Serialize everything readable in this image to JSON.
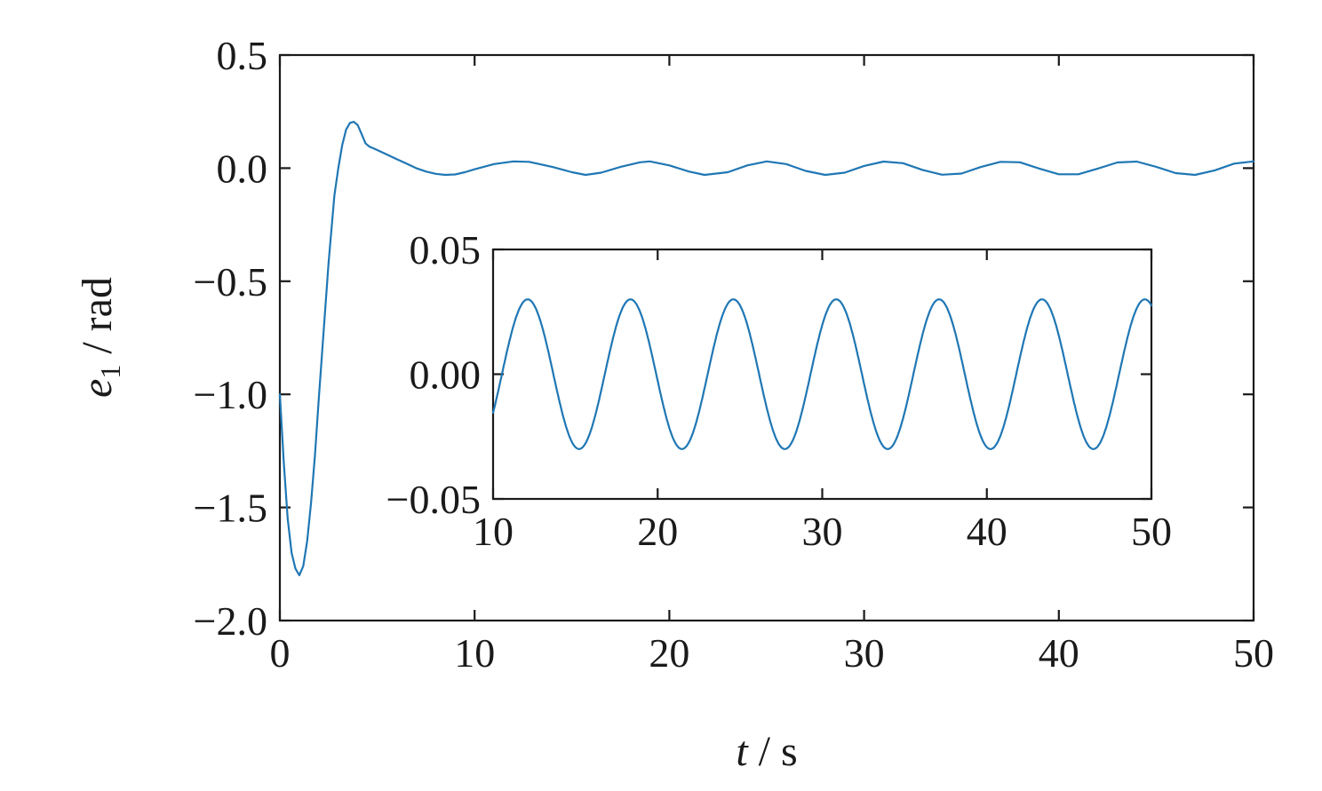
{
  "chart_data": [
    {
      "type": "line",
      "xlabel": {
        "var": "t",
        "sep": " / ",
        "unit": "s"
      },
      "ylabel": {
        "var": "e",
        "sub": "1",
        "sep": " / ",
        "unit": "rad"
      },
      "xlim": [
        0,
        50
      ],
      "ylim": [
        -2.0,
        0.5
      ],
      "xticks": [
        0,
        10,
        20,
        30,
        40,
        50
      ],
      "xtick_labels": [
        "0",
        "10",
        "20",
        "30",
        "40",
        "50"
      ],
      "yticks": [
        0.5,
        0.0,
        -0.5,
        -1.0,
        -1.5,
        -2.0
      ],
      "ytick_labels": [
        "0.5",
        "0.0",
        "−0.5",
        "−1.0",
        "−1.5",
        "−2.0"
      ],
      "grid": false,
      "color": "#1f77b4",
      "series": [
        {
          "x": [
            0,
            0.2,
            0.4,
            0.6,
            0.8,
            1.0,
            1.2,
            1.4,
            1.6,
            1.8,
            2.0,
            2.2,
            2.5,
            2.8,
            3.0,
            3.2,
            3.4,
            3.6,
            3.8,
            4.0,
            4.2,
            4.4,
            4.6,
            4.8,
            5.0,
            5.5,
            6.0,
            6.5,
            7.0,
            7.5,
            8.0,
            8.5,
            9.0,
            9.5,
            10.0,
            11.0,
            12.0,
            12.8,
            14.0,
            15.0,
            15.7,
            16.5,
            17.5,
            18.5,
            19.0,
            20.0,
            21.0,
            21.8,
            23.0,
            24.0,
            25.0,
            26.0,
            27.0,
            28.0,
            29.0,
            30.0,
            31.0,
            32.0,
            33.0,
            34.0,
            35.0,
            36.0,
            37.0,
            38.0,
            39.0,
            40.0,
            41.0,
            42.0,
            43.0,
            44.0,
            45.0,
            46.0,
            47.0,
            48.0,
            49.0,
            50.0
          ],
          "y": [
            -1.0,
            -1.3,
            -1.55,
            -1.7,
            -1.77,
            -1.8,
            -1.76,
            -1.65,
            -1.48,
            -1.27,
            -1.02,
            -0.78,
            -0.42,
            -0.12,
            0.0,
            0.1,
            0.17,
            0.2,
            0.205,
            0.19,
            0.15,
            0.11,
            0.095,
            0.088,
            0.08,
            0.06,
            0.04,
            0.02,
            0.0,
            -0.015,
            -0.025,
            -0.03,
            -0.028,
            -0.018,
            -0.005,
            0.018,
            0.03,
            0.028,
            0.005,
            -0.018,
            -0.03,
            -0.02,
            0.006,
            0.026,
            0.03,
            0.012,
            -0.015,
            -0.03,
            -0.018,
            0.012,
            0.03,
            0.018,
            -0.012,
            -0.03,
            -0.02,
            0.01,
            0.029,
            0.022,
            -0.008,
            -0.029,
            -0.024,
            0.005,
            0.028,
            0.026,
            -0.002,
            -0.027,
            -0.027,
            -0.002,
            0.025,
            0.029,
            0.006,
            -0.022,
            -0.03,
            -0.01,
            0.02,
            0.03
          ]
        }
      ]
    },
    {
      "type": "line",
      "inset": true,
      "xlim": [
        10,
        50
      ],
      "ylim": [
        -0.05,
        0.05
      ],
      "xticks": [
        10,
        20,
        30,
        40,
        50
      ],
      "xtick_labels": [
        "10",
        "20",
        "30",
        "40",
        "50"
      ],
      "yticks": [
        0.05,
        0.0,
        -0.05
      ],
      "ytick_labels": [
        "0.05",
        "0.00",
        "−0.05"
      ],
      "grid": false,
      "color": "#1f77b4",
      "sine": {
        "x0": 10,
        "peak_x": 12.1,
        "period": 6.25,
        "amplitude": 0.03,
        "x1": 50
      }
    }
  ]
}
